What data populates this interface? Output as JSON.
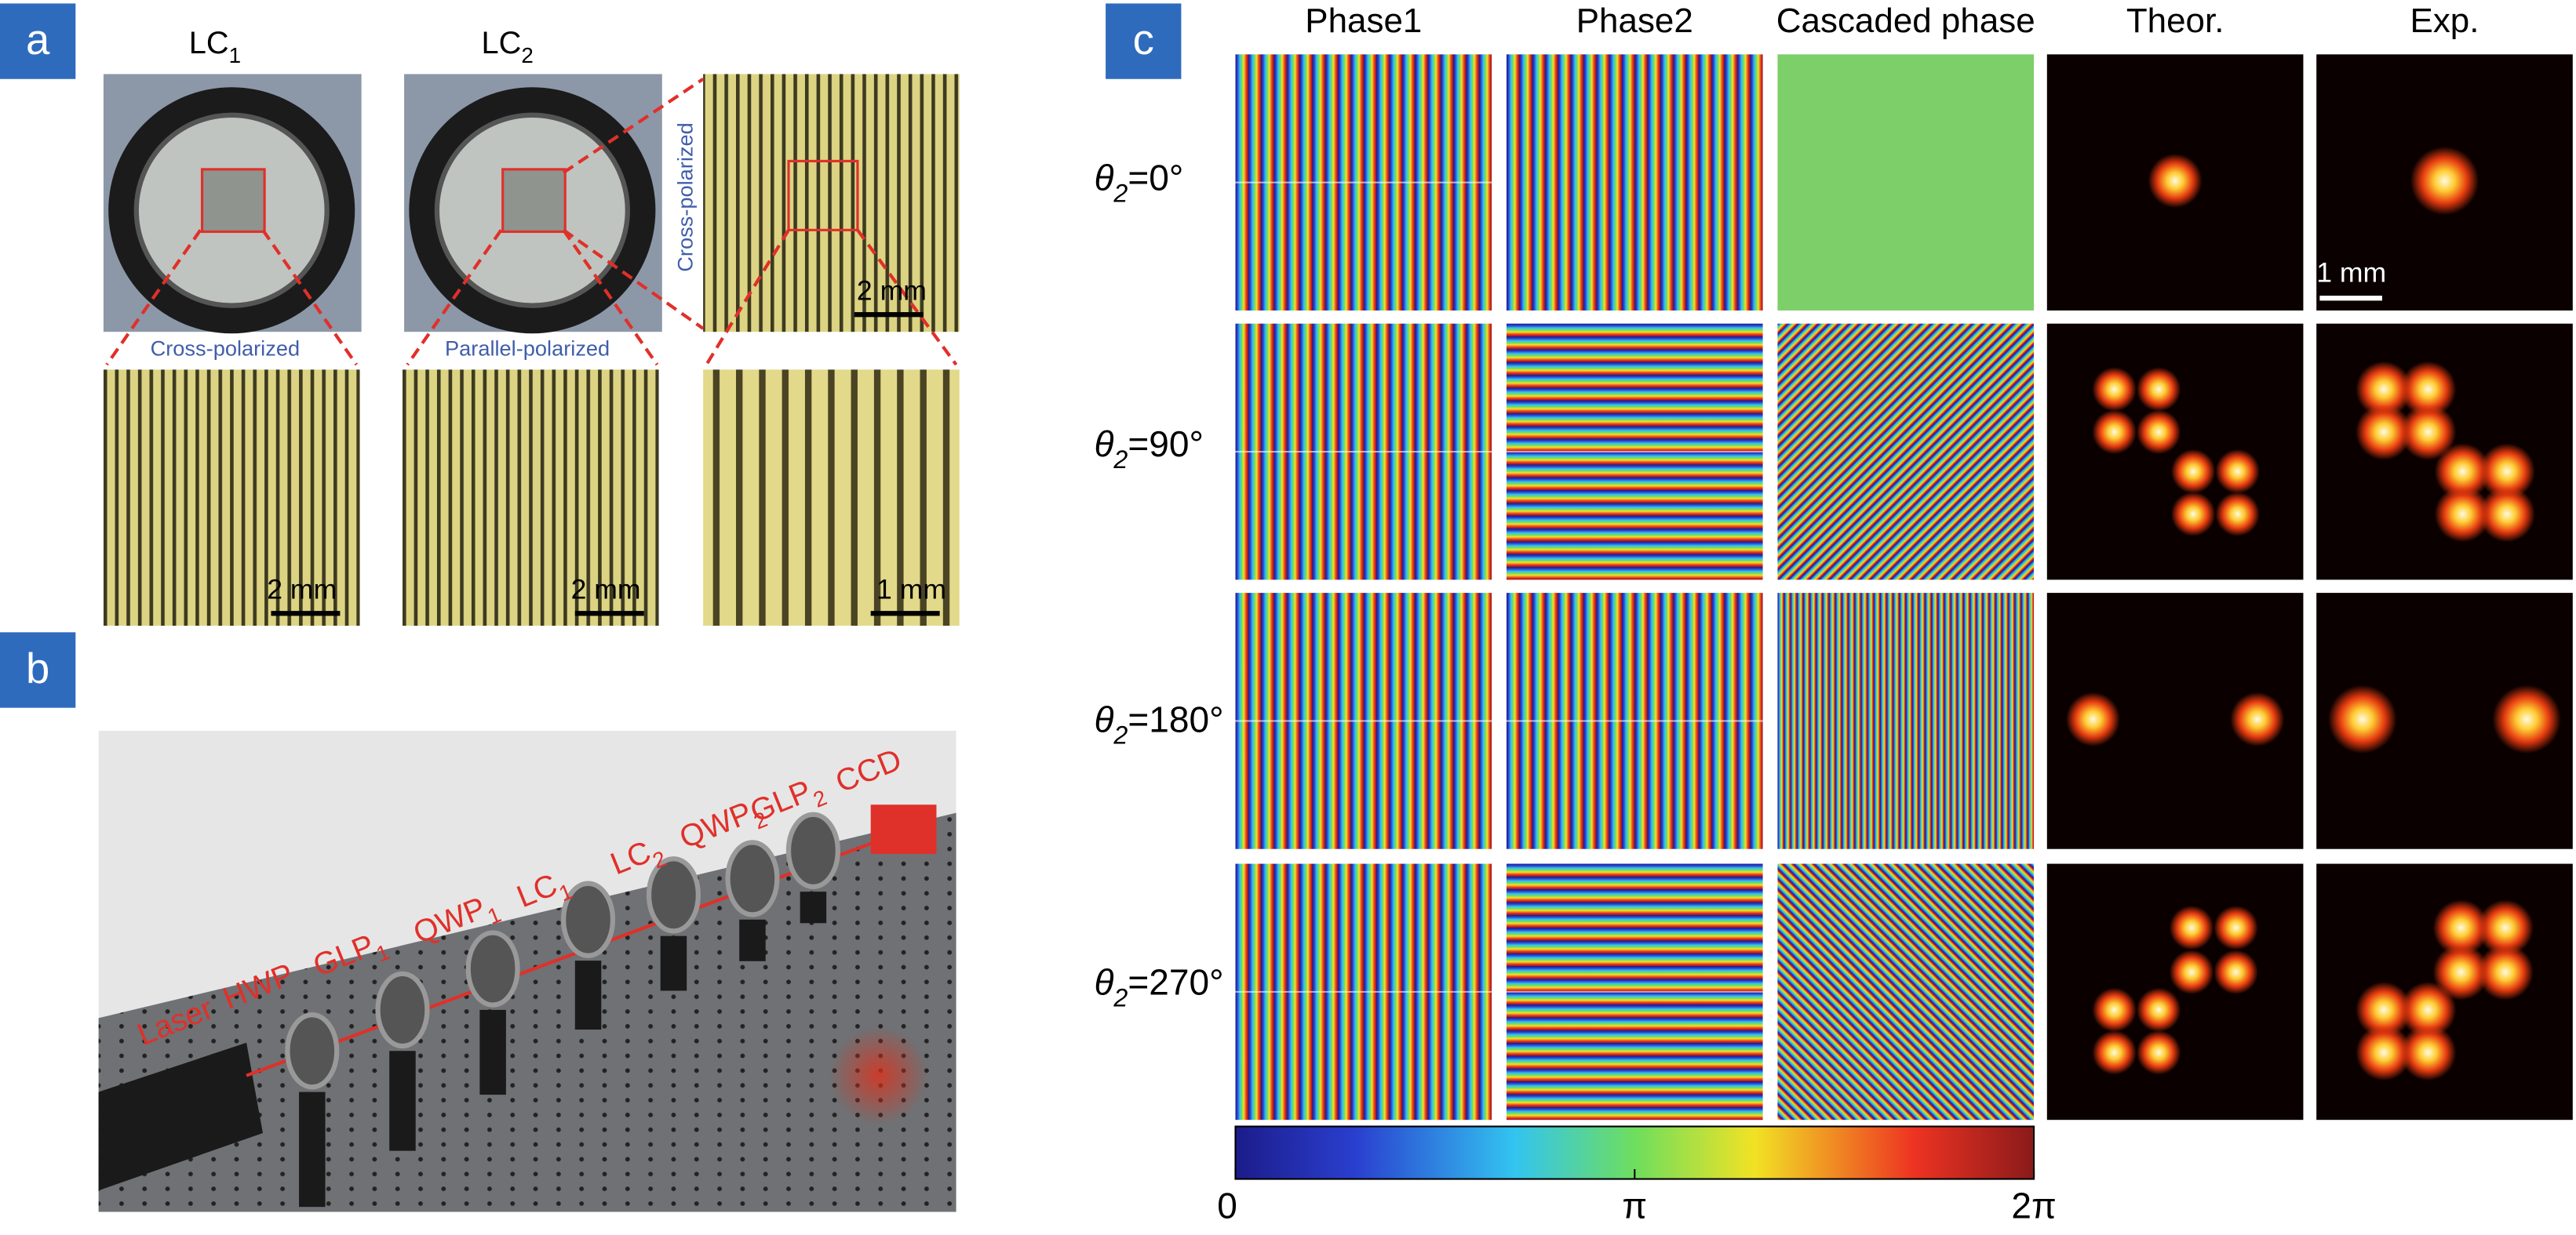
{
  "panel_labels": {
    "a": "a",
    "b": "b",
    "c": "c"
  },
  "panel_a": {
    "lc1": [
      "LC",
      "1"
    ],
    "lc2": [
      "LC",
      "2"
    ],
    "cross_polarized_1": "Cross-polarized",
    "parallel_polarized": "Parallel-polarized",
    "cross_polarized_2": "Cross-polarized",
    "scale_bars": [
      "2 mm",
      "2 mm",
      "2 mm",
      "1 mm"
    ]
  },
  "panel_b": {
    "labels": [
      [
        "Laser"
      ],
      [
        "HWP"
      ],
      [
        "GLP",
        "1"
      ],
      [
        "QWP",
        "1"
      ],
      [
        "LC",
        "1"
      ],
      [
        "LC",
        "2"
      ],
      [
        "QWP",
        "2"
      ],
      [
        "GLP",
        "2"
      ],
      [
        "CCD"
      ]
    ]
  },
  "panel_c": {
    "columns": [
      "Phase1",
      "Phase2",
      "Cascaded phase",
      "Theor.",
      "Exp."
    ],
    "rows": [
      [
        "θ",
        "2",
        "=0°"
      ],
      [
        "θ",
        "2",
        "=90°"
      ],
      [
        "θ",
        "2",
        "=180°"
      ],
      [
        "θ",
        "2",
        "=270°"
      ]
    ],
    "scale_bar": "1 mm",
    "colorbar_ticks": [
      "0",
      "π",
      "2π"
    ]
  }
}
